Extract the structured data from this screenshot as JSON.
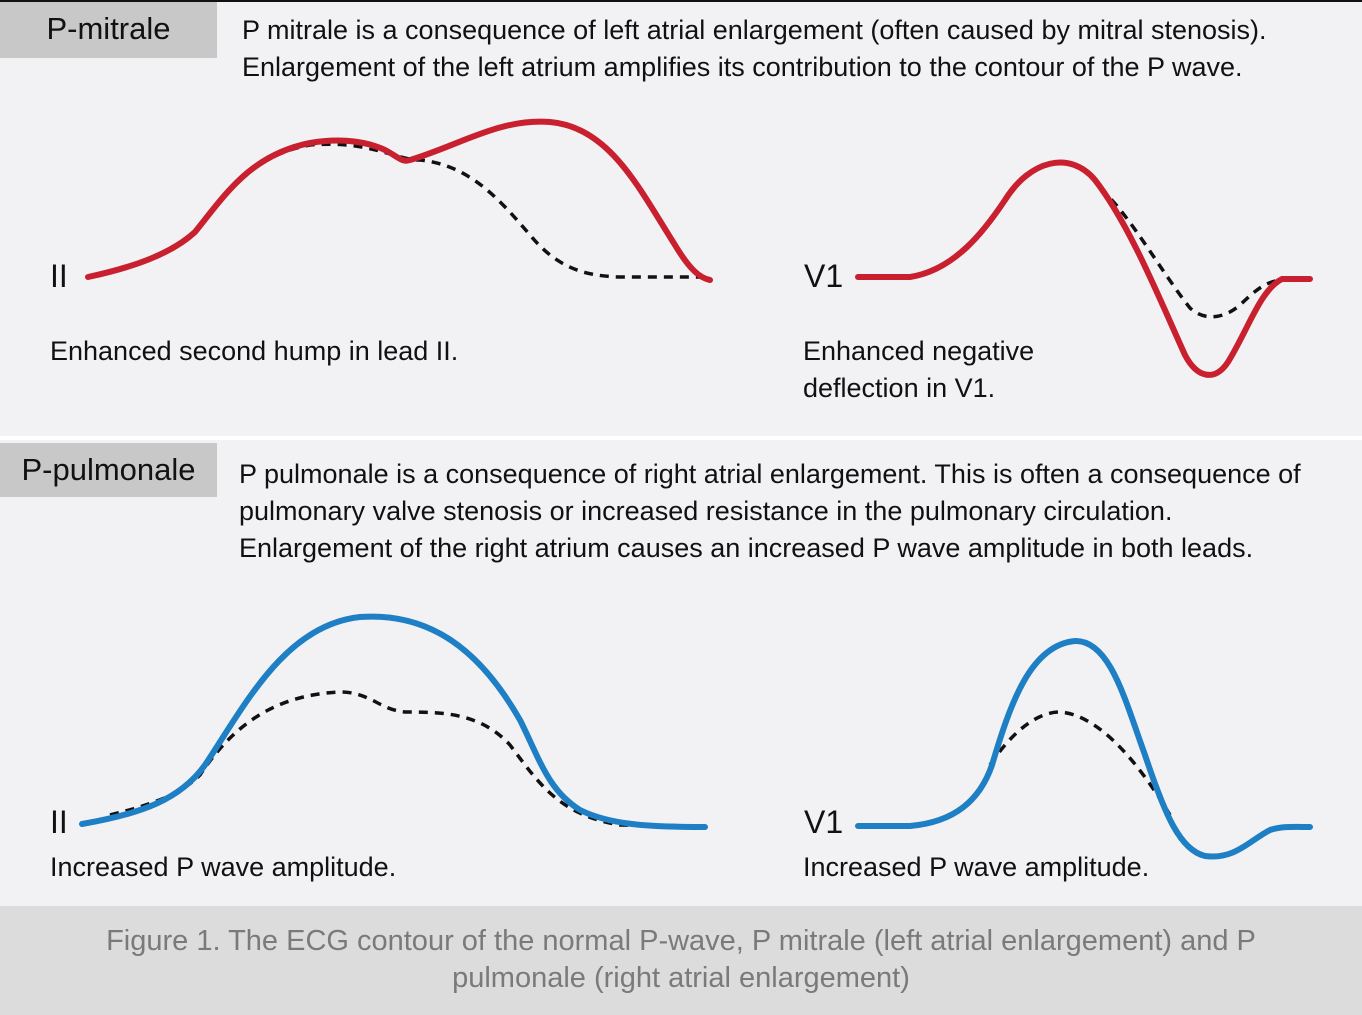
{
  "mitrale": {
    "tag": "P-mitrale",
    "description": [
      "P mitrale is a consequence of left atrial enlargement (often caused by mitral stenosis).",
      "Enlargement of the left atrium amplifies its contribution to the contour of the P wave."
    ],
    "lead_ii": "II",
    "lead_v1": "V1",
    "caption_ii": "Enhanced second hump in lead II.",
    "caption_v1": [
      "Enhanced negative",
      "deflection in V1."
    ],
    "wave_color": "#c8202e"
  },
  "pulmonale": {
    "tag": "P-pulmonale",
    "description": [
      "P pulmonale is a consequence of right atrial enlargement. This is often a consequence of",
      "pulmonary valve stenosis or increased resistance in the pulmonary circulation.",
      "Enlargement of the right atrium causes an increased P wave amplitude in both leads."
    ],
    "lead_ii": "II",
    "lead_v1": "V1",
    "caption_ii": "Increased P wave amplitude.",
    "caption_v1": "Increased P wave amplitude.",
    "wave_color": "#1e7fc4"
  },
  "normal_wave_color": "#111111",
  "figure_caption": [
    "Figure 1. The ECG contour of the normal P-wave, P mitrale (left atrial enlargement) and P",
    "pulmonale (right atrial enlargement)"
  ]
}
